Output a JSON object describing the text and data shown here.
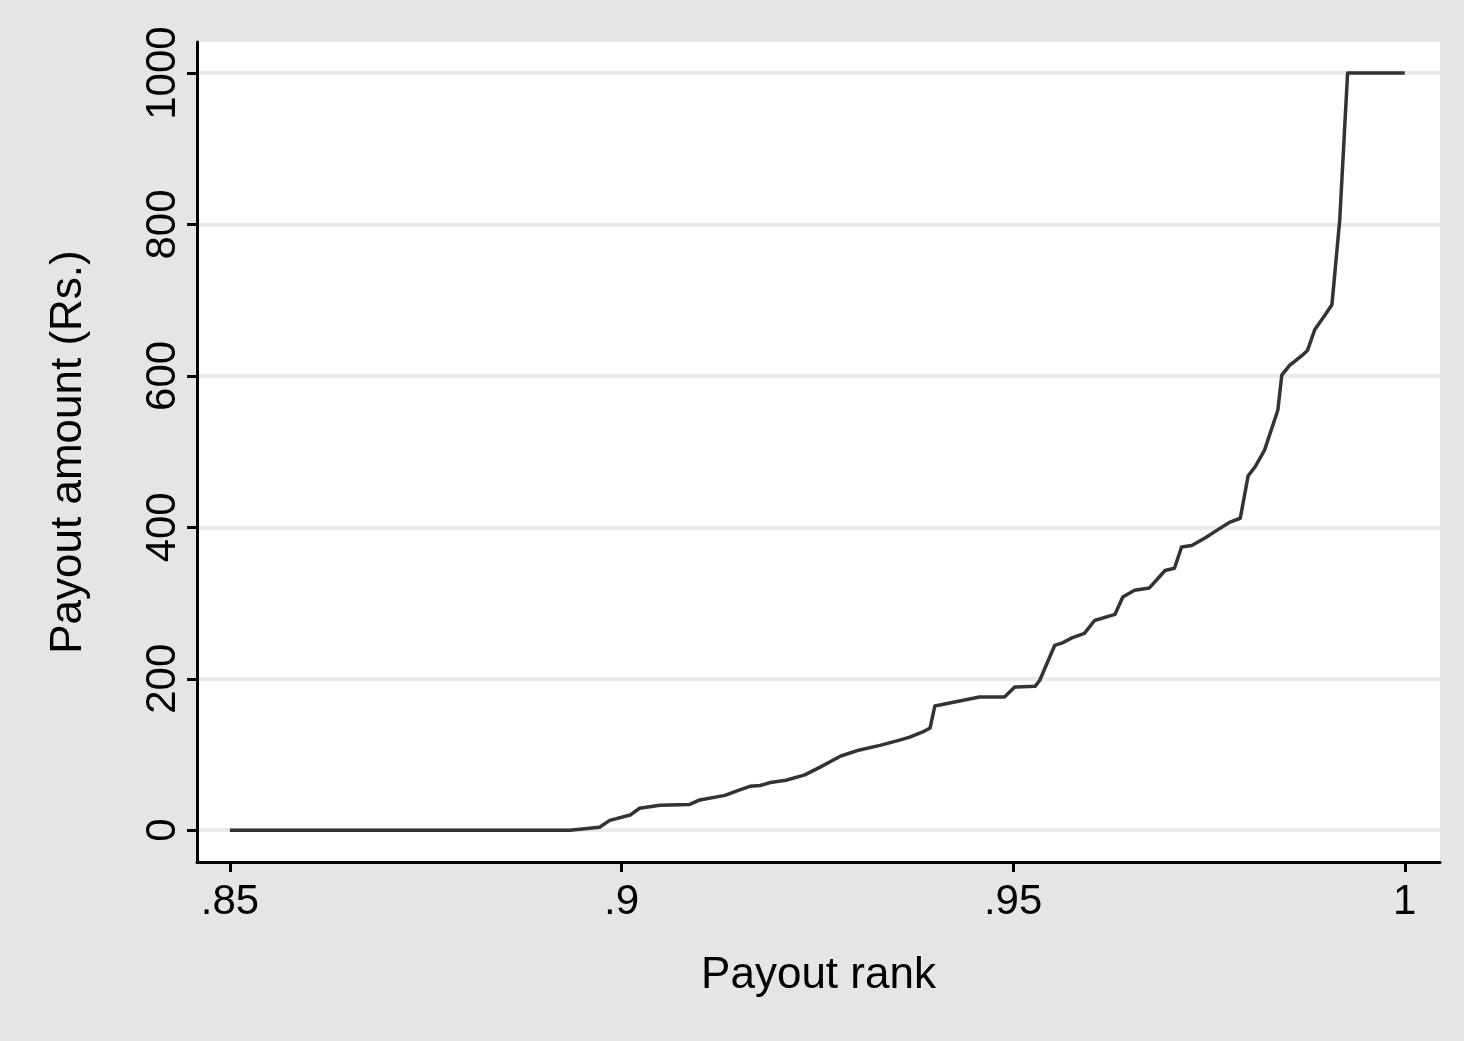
{
  "chart_data": {
    "type": "line",
    "xlabel": "Payout rank",
    "ylabel": "Payout amount (Rs.)",
    "x": [
      0.85,
      0.8934,
      0.8972,
      0.8985,
      0.9011,
      0.9023,
      0.9049,
      0.9087,
      0.91,
      0.9132,
      0.915,
      0.9164,
      0.9177,
      0.919,
      0.921,
      0.9234,
      0.9253,
      0.928,
      0.9304,
      0.933,
      0.9355,
      0.9368,
      0.9387,
      0.9394,
      0.94,
      0.9419,
      0.9438,
      0.9457,
      0.9489,
      0.9502,
      0.9528,
      0.9534,
      0.9553,
      0.9562,
      0.9575,
      0.9591,
      0.9604,
      0.963,
      0.964,
      0.9655,
      0.9674,
      0.9694,
      0.9706,
      0.9715,
      0.9728,
      0.9745,
      0.9757,
      0.9777,
      0.979,
      0.98,
      0.9809,
      0.9821,
      0.9838,
      0.9843,
      0.9853,
      0.9869,
      0.9876,
      0.9885,
      0.9898,
      0.9907,
      0.9917,
      0.9927,
      1
    ],
    "series": [
      {
        "color": "#333333",
        "values": [
          0,
          0,
          4,
          13,
          20,
          29,
          33,
          34,
          40,
          46,
          53,
          58,
          59,
          63,
          66,
          73,
          83,
          98,
          106,
          112,
          119,
          123,
          131,
          135,
          164,
          168,
          172,
          176,
          176,
          189,
          190,
          198,
          244,
          247,
          254,
          260,
          277,
          285,
          308,
          317,
          320,
          343,
          346,
          374,
          376,
          386,
          394,
          407,
          412,
          468,
          480,
          502,
          555,
          601,
          614,
          627,
          634,
          661,
          680,
          694,
          806,
          1000,
          1000
        ]
      }
    ],
    "xlim": [
      0.8458,
      1.0045
    ],
    "ylim": [
      -42,
      1041
    ],
    "xticks": [
      {
        "value": 0.85,
        "label": ".85"
      },
      {
        "value": 0.9,
        "label": ".9"
      },
      {
        "value": 0.95,
        "label": ".95"
      },
      1
    ],
    "yticks": [
      0,
      200,
      400,
      600,
      800,
      1000
    ],
    "grid": "y",
    "marker": "none",
    "line_style": "solid"
  }
}
